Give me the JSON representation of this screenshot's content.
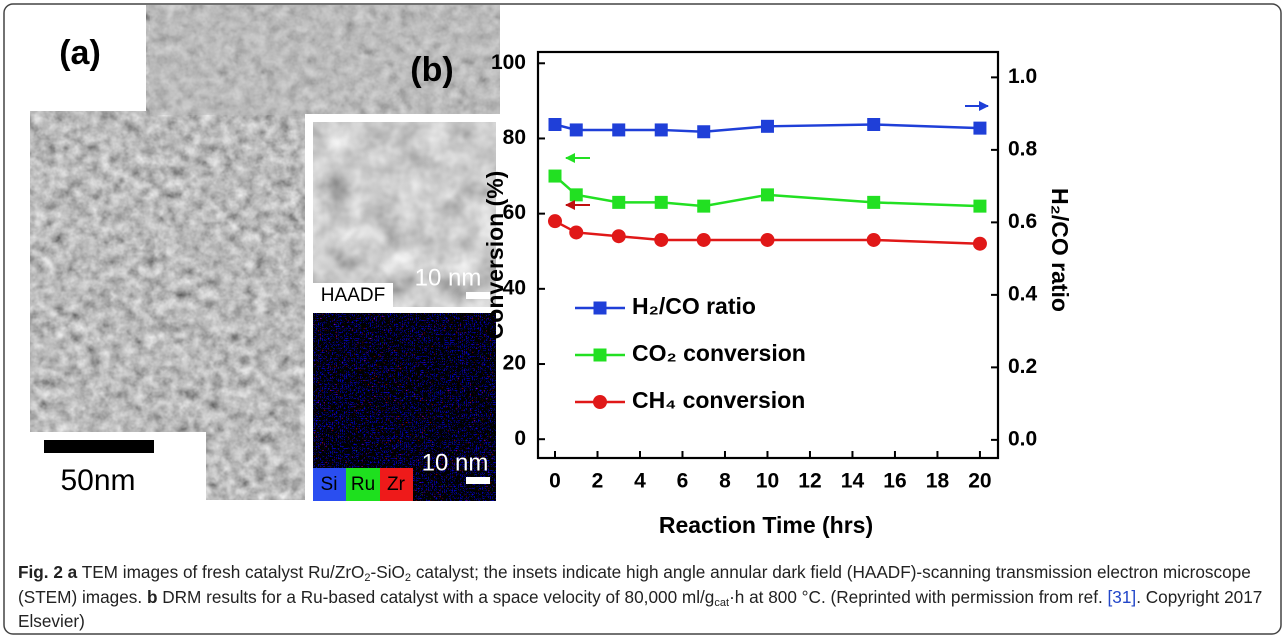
{
  "panel_a": {
    "label": "(a)",
    "scale_label": "50nm",
    "inset_label": "HAADF",
    "inset_scale_1": "10 nm",
    "inset_scale_2": "10 nm",
    "elements": [
      "Si",
      "Ru",
      "Zr"
    ]
  },
  "chart_data": {
    "type": "line",
    "title": "(b)",
    "x_label": "Reaction Time (hrs)",
    "y_label": "Conversion (%)",
    "y2_label": "H₂/CO ratio",
    "x": [
      0,
      1,
      3,
      5,
      7,
      10,
      15,
      20
    ],
    "series": [
      {
        "name": "H₂/CO ratio",
        "color": "#1f3fd8",
        "marker": "square",
        "axis": "y2",
        "values": [
          0.87,
          0.855,
          0.855,
          0.855,
          0.85,
          0.865,
          0.87,
          0.86
        ]
      },
      {
        "name": "CO₂ conversion",
        "color": "#22e022",
        "marker": "square",
        "values": [
          70,
          65,
          63,
          63,
          62,
          65,
          63,
          62
        ]
      },
      {
        "name": "CH₄ conversion",
        "color": "#e01818",
        "marker": "circle",
        "values": [
          58,
          55,
          54,
          53,
          53,
          53,
          53,
          52
        ]
      }
    ],
    "xlim": [
      -0.8,
      20.85
    ],
    "xticks": [
      0,
      2,
      4,
      6,
      8,
      10,
      12,
      14,
      16,
      18,
      20
    ],
    "ylim": [
      -5,
      103
    ],
    "yticks": [
      0,
      20,
      40,
      60,
      80,
      100
    ],
    "y2lim": [
      -0.05,
      1.07
    ],
    "y2ticks": [
      {
        "value": 0,
        "label": "0.0"
      },
      0.2,
      0.4,
      0.6,
      0.8,
      {
        "value": 1,
        "label": "1.0"
      }
    ],
    "grid": false,
    "legend": "lower left"
  },
  "caption": {
    "segments": [
      "Fig. 2",
      "a",
      "TEM images of fresh catalyst Ru/ZrO",
      "2",
      "-SiO",
      "2",
      "catalyst; the insets indicate high angle annular dark field (HAADF)-scanning transmission electron microscope (STEM) images.",
      "b",
      "DRM results for a Ru-based catalyst with a space velocity of 80,000 ml/g",
      "cat",
      "·h at 800 °C. (Reprinted with permission from ref.",
      "[31]",
      ". Copyright 2017 Elsevier)"
    ]
  }
}
